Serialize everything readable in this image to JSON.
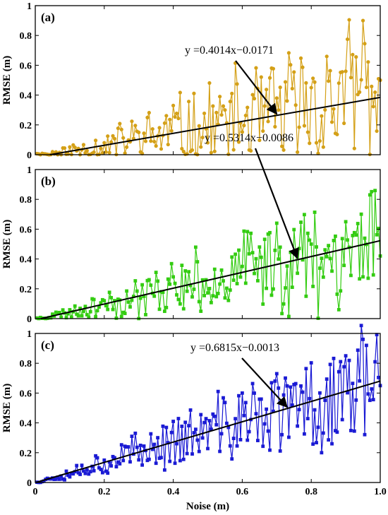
{
  "chart_data": [
    {
      "type": "line",
      "panel_label": "(a)",
      "ylabel": "RMSE (m)",
      "xlabel": "",
      "xlim": [
        0,
        1
      ],
      "ylim": [
        0,
        1
      ],
      "y_ticks": [
        "0",
        "0.2",
        "0.4",
        "0.6",
        "0.8",
        "1"
      ],
      "x_ticks": [],
      "series_color": "#D4A017",
      "marker": "circle",
      "fit": {
        "slope": 0.4014,
        "intercept": -0.0171,
        "equation": "y =0.4014x−0.0171",
        "color": "#000000"
      },
      "annotation_arrow_target_x": 0.7,
      "noise_amplitude": 0.55,
      "seed": 11,
      "sample_points": [
        [
          0.05,
          0.02
        ],
        [
          0.2,
          0.08
        ],
        [
          0.3,
          0.15
        ],
        [
          0.4,
          0.33
        ],
        [
          0.55,
          0.3
        ],
        [
          0.7,
          0.38
        ],
        [
          0.8,
          0.45
        ],
        [
          0.88,
          0.48
        ],
        [
          0.95,
          0.9
        ],
        [
          1.0,
          0.5
        ]
      ]
    },
    {
      "type": "line",
      "panel_label": "(b)",
      "ylabel": "RMSE (m)",
      "xlabel": "",
      "xlim": [
        0,
        1
      ],
      "ylim": [
        0,
        1
      ],
      "y_ticks": [
        "0",
        "0.2",
        "0.4",
        "0.6",
        "0.8",
        "1"
      ],
      "x_ticks": [],
      "series_color": "#33CC11",
      "marker": "square",
      "fit": {
        "slope": 0.5314,
        "intercept": -0.0086,
        "equation": "y =0.5314x−0.0086",
        "color": "#000000"
      },
      "annotation_arrow_target_x": 0.76,
      "noise_amplitude": 0.42,
      "seed": 23,
      "sample_points": [
        [
          0.05,
          0.03
        ],
        [
          0.2,
          0.12
        ],
        [
          0.4,
          0.28
        ],
        [
          0.6,
          0.35
        ],
        [
          0.7,
          0.64
        ],
        [
          0.8,
          0.5
        ],
        [
          0.9,
          0.65
        ],
        [
          0.97,
          0.83
        ],
        [
          1.0,
          0.42
        ]
      ]
    },
    {
      "type": "line",
      "panel_label": "(c)",
      "ylabel": "RMSE (m)",
      "xlabel": "Noise (m)",
      "xlim": [
        0,
        1
      ],
      "ylim": [
        0,
        1
      ],
      "y_ticks": [
        "0",
        "0.2",
        "0.4",
        "0.6",
        "0.8",
        "1"
      ],
      "x_ticks": [
        "0",
        "0.2",
        "0.4",
        "0.6",
        "0.8",
        "1.0"
      ],
      "series_color": "#1A1AD4",
      "marker": "square",
      "fit": {
        "slope": 0.6815,
        "intercept": -0.0013,
        "equation": "y =0.6815x−0.0013",
        "color": "#000000"
      },
      "annotation_arrow_target_x": 0.73,
      "noise_amplitude": 0.4,
      "seed": 37,
      "sample_points": [
        [
          0.05,
          0.03
        ],
        [
          0.2,
          0.15
        ],
        [
          0.4,
          0.41
        ],
        [
          0.6,
          0.6
        ],
        [
          0.7,
          0.73
        ],
        [
          0.83,
          0.2
        ],
        [
          0.9,
          0.85
        ],
        [
          0.96,
          0.92
        ],
        [
          1.0,
          0.65
        ]
      ]
    }
  ]
}
